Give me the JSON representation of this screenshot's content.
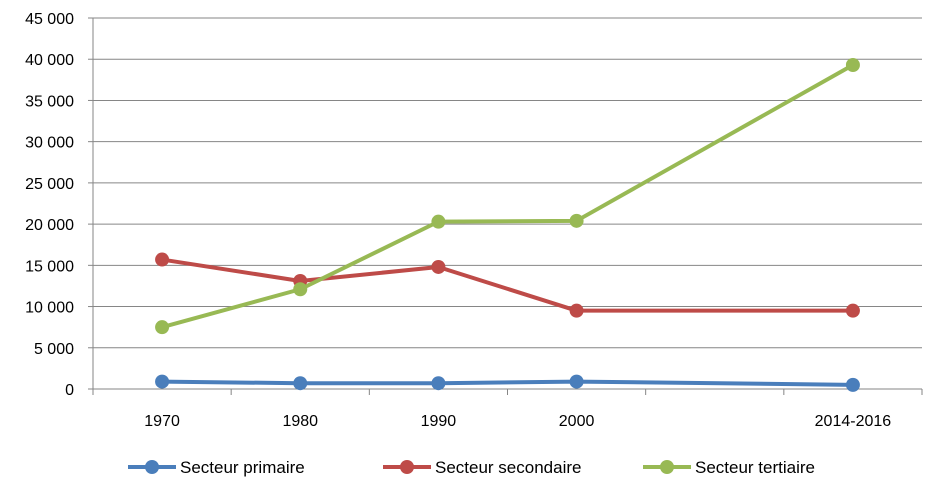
{
  "chart_data": {
    "type": "line",
    "categories": [
      "1970",
      "1980",
      "1990",
      "2000",
      "",
      "2014-2016"
    ],
    "series": [
      {
        "name": "Secteur primaire",
        "color": "#4A7EBB",
        "values": [
          900,
          700,
          700,
          900,
          null,
          500
        ]
      },
      {
        "name": "Secteur secondaire",
        "color": "#BE4B48",
        "values": [
          15700,
          13100,
          14800,
          9500,
          null,
          9500
        ]
      },
      {
        "name": "Secteur tertiaire",
        "color": "#98B954",
        "values": [
          7500,
          12100,
          20300,
          20400,
          null,
          39300
        ]
      }
    ],
    "yticks": [
      "0",
      "5 000",
      "10 000",
      "15 000",
      "20 000",
      "25 000",
      "30 000",
      "35 000",
      "40 000",
      "45 000"
    ],
    "ylim": [
      0,
      45000
    ],
    "grid": true,
    "legend_position": "bottom"
  }
}
